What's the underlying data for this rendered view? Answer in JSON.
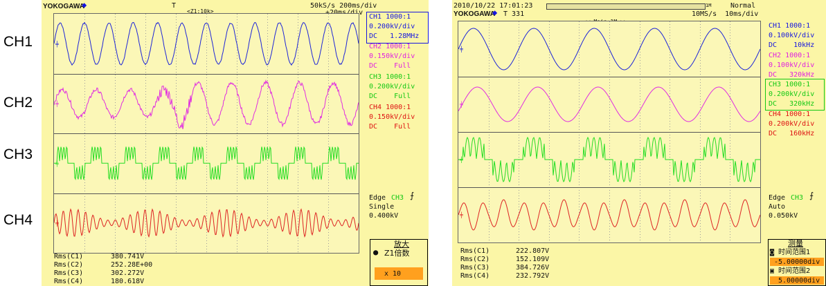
{
  "colors": {
    "ch1": "#1c24d8",
    "ch2": "#e02ce0",
    "ch3": "#22dd22",
    "ch4": "#dd2222",
    "bg": "#fbf6a6"
  },
  "channel_labels": [
    "CH1",
    "CH2",
    "CH3",
    "CH4"
  ],
  "left": {
    "brand": "YOKOGAWA",
    "brand_icon": "diamond-icon",
    "trigger_marker": "T",
    "rate": "50kS/s 200ms/div",
    "zoom_label": "<Z1:10k>",
    "zoom_rate": "+20ms/div",
    "channels": [
      {
        "name": "CH1 1000:1",
        "scale": "0.200kV/div",
        "coupling": "DC   1.28MHz"
      },
      {
        "name": "CH2 1000:1",
        "scale": "0.150kV/div",
        "coupling": "DC    Full"
      },
      {
        "name": "CH3 1000:1",
        "scale": "0.200kV/div",
        "coupling": "DC    Full"
      },
      {
        "name": "CH4 1000:1",
        "scale": "0.150kV/div",
        "coupling": "DC    Full"
      }
    ],
    "trigger": {
      "edge": "Edge",
      "source": "CH3",
      "mode": "Single",
      "level": "0.400kV"
    },
    "measurements": [
      {
        "label": "Rms(C1)",
        "value": "380.741V"
      },
      {
        "label": "Rms(C2)",
        "value": "252.28E+00"
      },
      {
        "label": "Rms(C3)",
        "value": "302.272V"
      },
      {
        "label": "Rms(C4)",
        "value": "180.618V"
      }
    ],
    "zoom_menu": {
      "title": "放大",
      "option": "Z1倍数",
      "value": "x 10"
    }
  },
  "right": {
    "datetime": "2010/10/22 17:01:23",
    "mode": "Normal",
    "brand": "YOKOGAWA",
    "brand_icon": "diamond-icon",
    "trigger_count": "T 331",
    "rate": "10MS/s  10ms/div",
    "main_label": "<< Main:1M >>",
    "record_length": "1M",
    "channels": [
      {
        "name": "CH1 1000:1",
        "scale": "0.100kV/div",
        "coupling": "DC    10kHz"
      },
      {
        "name": "CH2 1000:1",
        "scale": "0.100kV/div",
        "coupling": "DC   320kHz"
      },
      {
        "name": "CH3 1000:1",
        "scale": "0.200kV/div",
        "coupling": "DC   320kHz"
      },
      {
        "name": "CH4 1000:1",
        "scale": "0.200kV/div",
        "coupling": "DC   160kHz"
      }
    ],
    "trigger": {
      "edge": "Edge",
      "source": "CH3",
      "mode": "Auto",
      "level": "0.050kV"
    },
    "measurements": [
      {
        "label": "Rms(C1)",
        "value": "222.807V"
      },
      {
        "label": "Rms(C2)",
        "value": "152.109V"
      },
      {
        "label": "Rms(C3)",
        "value": "384.726V"
      },
      {
        "label": "Rms(C4)",
        "value": "232.792V"
      }
    ],
    "measure_menu": {
      "title": "测量",
      "range1_label": "时间范围1",
      "range1_value": "-5.00000div",
      "range2_label": "时间范围2",
      "range2_value": "5.00000div"
    }
  }
}
